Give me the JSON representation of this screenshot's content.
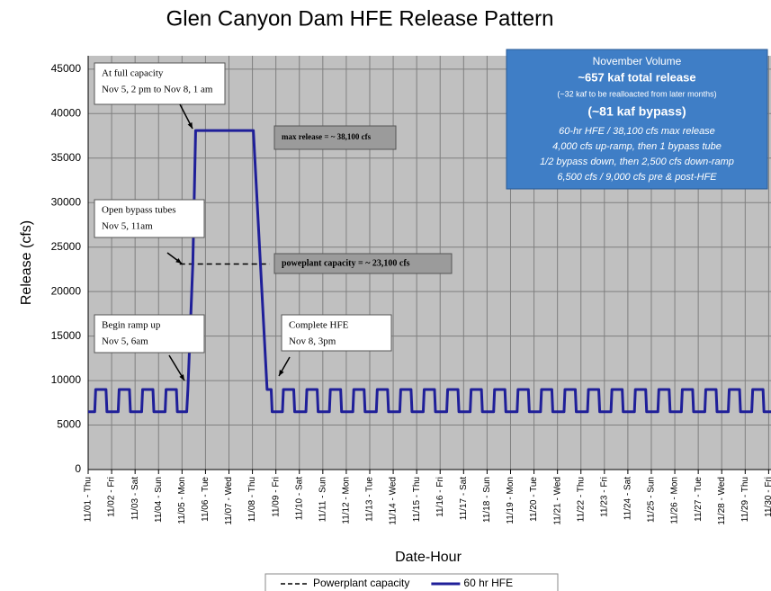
{
  "chart_data": {
    "type": "line",
    "title": "Glen Canyon Dam HFE Release Pattern",
    "xlabel": "Date-Hour",
    "ylabel": "Release (cfs)",
    "xlim": [
      0,
      29.1
    ],
    "ylim": [
      0,
      46500
    ],
    "yticks": [
      0,
      5000,
      10000,
      15000,
      20000,
      25000,
      30000,
      35000,
      40000,
      45000
    ],
    "xticks": [
      {
        "value": 0,
        "label": "11/01 - Thu"
      },
      {
        "value": 1,
        "label": "11/02 - Fri"
      },
      {
        "value": 2,
        "label": "11/03 - Sat"
      },
      {
        "value": 3,
        "label": "11/04 - Sun"
      },
      {
        "value": 4,
        "label": "11/05 - Mon"
      },
      {
        "value": 5,
        "label": "11/06 - Tue"
      },
      {
        "value": 6,
        "label": "11/07 - Wed"
      },
      {
        "value": 7,
        "label": "11/08 - Thu"
      },
      {
        "value": 8,
        "label": "11/09 - Fri"
      },
      {
        "value": 9,
        "label": "11/10 - Sat"
      },
      {
        "value": 10,
        "label": "11/11 - Sun"
      },
      {
        "value": 11,
        "label": "11/12 - Mon"
      },
      {
        "value": 12,
        "label": "11/13 - Tue"
      },
      {
        "value": 13,
        "label": "11/14 - Wed"
      },
      {
        "value": 14,
        "label": "11/15 - Thu"
      },
      {
        "value": 15,
        "label": "11/16 - Fri"
      },
      {
        "value": 16,
        "label": "11/17 - Sat"
      },
      {
        "value": 17,
        "label": "11/18 - Sun"
      },
      {
        "value": 18,
        "label": "11/19 - Mon"
      },
      {
        "value": 19,
        "label": "11/20 - Tue"
      },
      {
        "value": 20,
        "label": "11/21 - Wed"
      },
      {
        "value": 21,
        "label": "11/22 - Thu"
      },
      {
        "value": 22,
        "label": "11/23 - Fri"
      },
      {
        "value": 23,
        "label": "11/24 - Sat"
      },
      {
        "value": 24,
        "label": "11/25 - Sun"
      },
      {
        "value": 25,
        "label": "11/26 - Mon"
      },
      {
        "value": 26,
        "label": "11/27 - Tue"
      },
      {
        "value": 27,
        "label": "11/28 - Wed"
      },
      {
        "value": 28,
        "label": "11/29 - Thu"
      },
      {
        "value": 29,
        "label": "11/30 - Fri"
      }
    ],
    "grid": true,
    "series": [
      {
        "name": "Powerplant capacity",
        "color": "#000000",
        "dashed": true,
        "x": [
          3.9,
          7.74
        ],
        "values": [
          23100,
          23100
        ]
      },
      {
        "name": "60 hr HFE",
        "color": "#1f1f99",
        "dashed": false,
        "x": [
          0,
          0.28,
          0.32,
          0.76,
          0.8,
          1.28,
          1.32,
          1.76,
          1.8,
          2.28,
          2.32,
          2.76,
          2.8,
          3.28,
          3.32,
          3.76,
          3.8,
          4.2,
          4.25,
          4.46,
          4.58,
          7.04,
          7.625,
          7.8,
          7.84,
          8.28,
          8.32,
          8.76,
          8.8,
          9.28,
          9.32,
          9.76,
          9.8,
          10.28,
          10.32,
          10.76,
          10.8,
          11.28,
          11.32,
          11.76,
          11.8,
          12.28,
          12.32,
          12.76,
          12.8,
          13.28,
          13.32,
          13.76,
          13.8,
          14.28,
          14.32,
          14.76,
          14.8,
          15.28,
          15.32,
          15.76,
          15.8,
          16.28,
          16.32,
          16.76,
          16.8,
          17.28,
          17.32,
          17.76,
          17.8,
          18.28,
          18.32,
          18.76,
          18.8,
          19.28,
          19.32,
          19.76,
          19.8,
          20.28,
          20.32,
          20.76,
          20.8,
          21.28,
          21.32,
          21.76,
          21.8,
          22.28,
          22.32,
          22.76,
          22.8,
          23.28,
          23.32,
          23.76,
          23.8,
          24.28,
          24.32,
          24.76,
          24.8,
          25.28,
          25.32,
          25.76,
          25.8,
          26.28,
          26.32,
          26.76,
          26.8,
          27.28,
          27.32,
          27.76,
          27.8,
          28.28,
          28.32,
          28.76,
          28.8,
          29.1
        ],
        "values": [
          6500,
          6500,
          9000,
          9000,
          6500,
          6500,
          9000,
          9000,
          6500,
          6500,
          9000,
          9000,
          6500,
          6500,
          9000,
          9000,
          6500,
          6500,
          9000,
          23100,
          38100,
          38100,
          9000,
          9000,
          6500,
          6500,
          9000,
          9000,
          6500,
          6500,
          9000,
          9000,
          6500,
          6500,
          9000,
          9000,
          6500,
          6500,
          9000,
          9000,
          6500,
          6500,
          9000,
          9000,
          6500,
          6500,
          9000,
          9000,
          6500,
          6500,
          9000,
          9000,
          6500,
          6500,
          9000,
          9000,
          6500,
          6500,
          9000,
          9000,
          6500,
          6500,
          9000,
          9000,
          6500,
          6500,
          9000,
          9000,
          6500,
          6500,
          9000,
          9000,
          6500,
          6500,
          9000,
          9000,
          6500,
          6500,
          9000,
          9000,
          6500,
          6500,
          9000,
          9000,
          6500,
          6500,
          9000,
          9000,
          6500,
          6500,
          9000,
          9000,
          6500,
          6500,
          9000,
          9000,
          6500,
          6500,
          9000,
          9000,
          6500,
          6500,
          9000,
          9000,
          6500,
          6500,
          9000,
          9000,
          6500,
          6500
        ]
      }
    ],
    "annotations": [
      {
        "lines": [
          "At full capacity",
          "Nov 5,  2 pm to Nov 8, 1 am"
        ]
      },
      {
        "lines": [
          "Open bypass tubes",
          "Nov 5, 11am"
        ]
      },
      {
        "lines": [
          "Begin ramp up",
          "Nov 5, 6am"
        ]
      },
      {
        "lines": [
          "Complete HFE",
          "Nov 8, 3pm"
        ]
      },
      {
        "lines": [
          "max release = ~ 38,100 cfs"
        ]
      },
      {
        "lines": [
          "poweplant capacity = ~ 23,100 cfs"
        ]
      }
    ],
    "info_box": [
      "November Volume",
      "~657 kaf  total release",
      "(~32 kaf to be realloacted from later months)",
      "(~81 kaf bypass)",
      "60-hr HFE / 38,100 cfs max release",
      "4,000 cfs up-ramp, then 1 bypass tube",
      "1/2 bypass down, then 2,500 cfs down-ramp",
      "6,500 cfs / 9,000 cfs  pre & post-HFE"
    ]
  }
}
